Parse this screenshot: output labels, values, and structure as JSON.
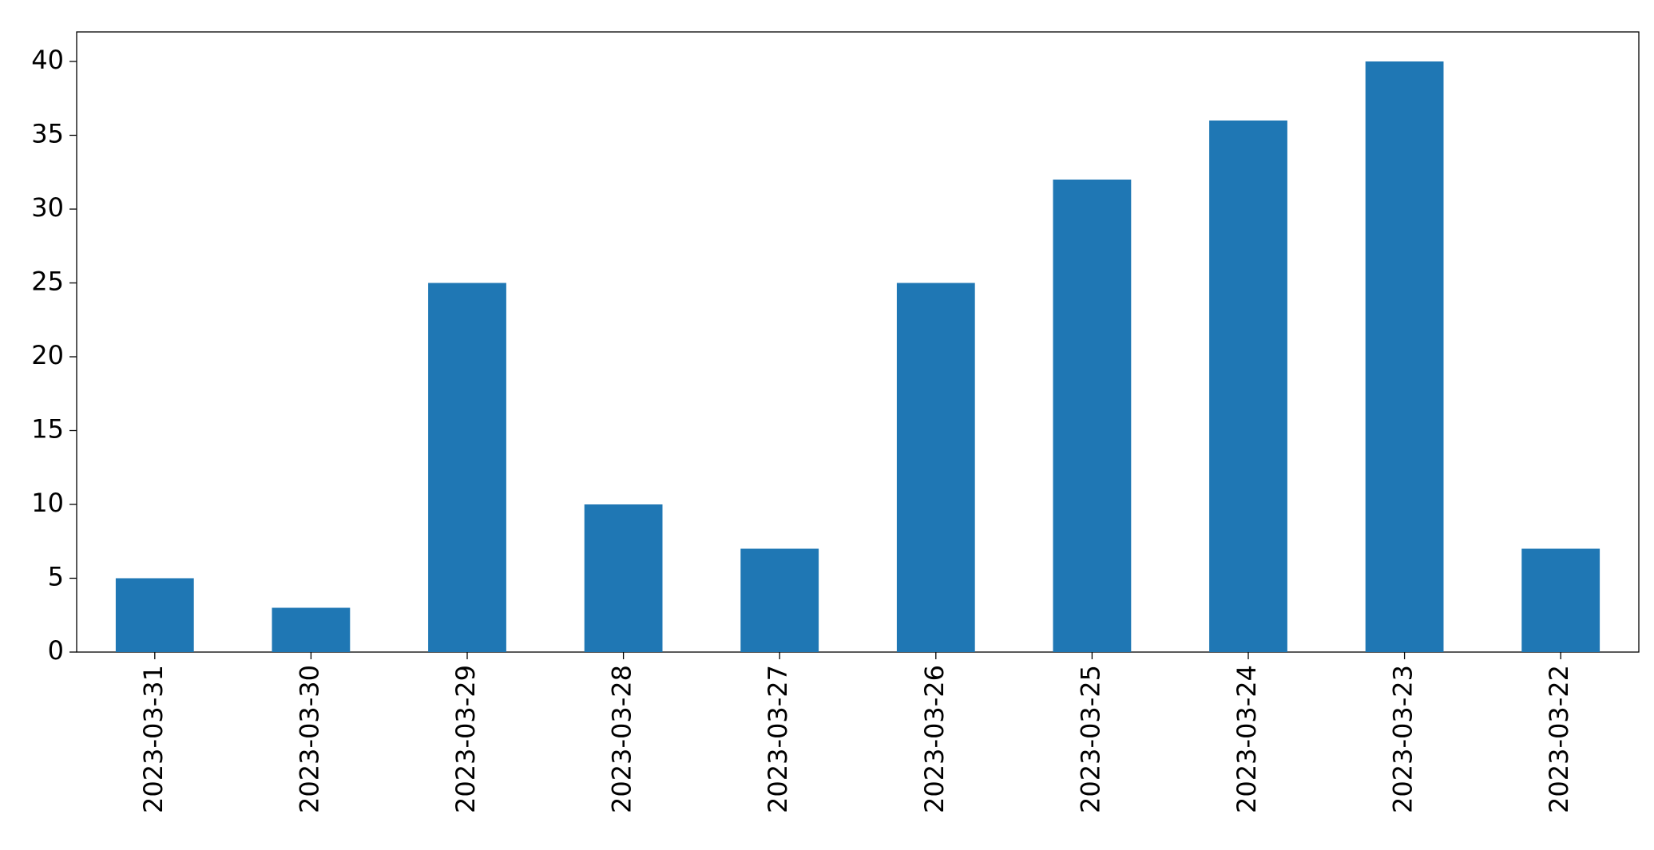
{
  "chart_data": {
    "type": "bar",
    "categories": [
      "2023-03-31",
      "2023-03-30",
      "2023-03-29",
      "2023-03-28",
      "2023-03-27",
      "2023-03-26",
      "2023-03-25",
      "2023-03-24",
      "2023-03-23",
      "2023-03-22"
    ],
    "values": [
      5,
      3,
      25,
      10,
      7,
      25,
      32,
      36,
      40,
      7
    ],
    "color": "#1f77b4",
    "ylim": [
      0,
      42
    ],
    "yticks": [
      0,
      5,
      10,
      15,
      20,
      25,
      30,
      35,
      40
    ],
    "grid": false
  }
}
